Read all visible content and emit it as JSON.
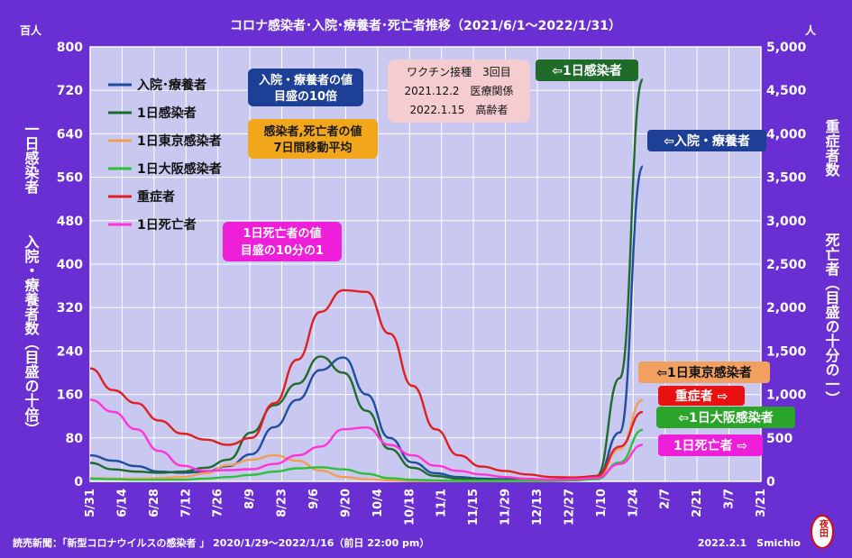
{
  "chart_data": {
    "type": "line",
    "title": "コロナ感染者･入院･療養者･死亡者推移（2021/6/1～2022/1/31）",
    "left_unit": "百人",
    "right_unit": "人",
    "left_axis_label_1": "一日感染者",
    "left_axis_label_2": "入院・療養者数（目盛の十倍）",
    "right_axis_label_1": "重症者数",
    "right_axis_label_2": "死亡者（目盛の十分の一）",
    "left_ticks": [
      "0",
      "80",
      "160",
      "240",
      "320",
      "400",
      "480",
      "560",
      "640",
      "720",
      "800"
    ],
    "right_ticks": [
      "0",
      "500",
      "1,000",
      "1,500",
      "2,000",
      "2,500",
      "3,000",
      "3,500",
      "4,000",
      "4,500",
      "5,000"
    ],
    "ylim_left": [
      0,
      800
    ],
    "ylim_right": [
      0,
      5000
    ],
    "x_ticks": [
      "5/31",
      "6/14",
      "6/28",
      "7/12",
      "7/26",
      "8/9",
      "8/23",
      "9/6",
      "9/20",
      "10/4",
      "10/18",
      "11/1",
      "11/15",
      "11/29",
      "12/13",
      "12/27",
      "1/10",
      "1/24",
      "2/7",
      "2/21",
      "3/7",
      "3/21"
    ],
    "series": [
      {
        "name": "入院･療養者",
        "color": "#1f4e9e",
        "values": [
          48,
          38,
          28,
          18,
          16,
          18,
          28,
          50,
          100,
          150,
          205,
          228,
          160,
          80,
          35,
          15,
          8,
          5,
          4,
          3,
          3,
          4,
          8,
          90,
          580
        ]
      },
      {
        "name": "1日感染者",
        "color": "#1e6b2a",
        "values": [
          34,
          22,
          18,
          16,
          18,
          25,
          40,
          90,
          140,
          180,
          230,
          200,
          130,
          60,
          25,
          10,
          5,
          3,
          2,
          2,
          3,
          5,
          10,
          190,
          740
        ]
      },
      {
        "name": "1日東京感染者",
        "color": "#f0a050",
        "values": [
          6,
          5,
          5,
          6,
          8,
          15,
          30,
          40,
          48,
          38,
          20,
          8,
          4,
          2,
          1,
          1,
          1,
          1,
          1,
          1,
          1,
          2,
          5,
          60,
          150
        ]
      },
      {
        "name": "1日大阪感染者",
        "color": "#2fbf3a",
        "values": [
          5,
          4,
          3,
          3,
          3,
          5,
          8,
          12,
          18,
          24,
          26,
          22,
          14,
          6,
          3,
          2,
          1,
          1,
          1,
          1,
          1,
          2,
          4,
          35,
          95
        ]
      },
      {
        "name": "重症者",
        "color": "#e02020",
        "values": [
          1300,
          1050,
          900,
          700,
          550,
          480,
          420,
          500,
          900,
          1400,
          1950,
          2200,
          2180,
          1700,
          1100,
          600,
          300,
          170,
          120,
          80,
          50,
          45,
          60,
          400,
          800
        ]
      },
      {
        "name": "1日死亡者",
        "color": "#ff33d6",
        "values": [
          940,
          800,
          600,
          350,
          180,
          120,
          130,
          140,
          200,
          300,
          400,
          600,
          620,
          420,
          300,
          180,
          120,
          80,
          50,
          30,
          20,
          25,
          40,
          200,
          420
        ]
      }
    ],
    "annotations": {
      "box_blue_1": "入院・療養者の値",
      "box_blue_2": "目盛の10倍",
      "box_orange_1": "感染者,死亡者の値",
      "box_orange_2": "7日間移動平均",
      "box_pink_1": "1日死亡者の値",
      "box_pink_2": "目盛の10分の1",
      "box_vax_1": "ワクチン接種　3回目",
      "box_vax_2": "2021.12.2　医療関係",
      "box_vax_3": "2022.1.15　高齢者",
      "tag_infected": "⇦1日感染者",
      "tag_hosp": "⇦入院・療養者",
      "tag_tokyo": "⇦1日東京感染者",
      "tag_severe": "重症者 ⇨",
      "tag_osaka": "⇦1日大阪感染者",
      "tag_death": "1日死亡者 ⇨"
    },
    "legend_labels": [
      "入院･療養者",
      "1日感染者",
      "1日東京感染者",
      "1日大阪感染者",
      "重症者",
      "1日死亡者"
    ],
    "grid": true,
    "legend_position": "top-left"
  },
  "footer": {
    "source": "読売新聞：「新型コロナウイルスの感染者 」 2020/1/29～2022/1/16（前日 22:00 pm）",
    "credit": "2022.2.1　Smichio",
    "seal": "夜田"
  }
}
